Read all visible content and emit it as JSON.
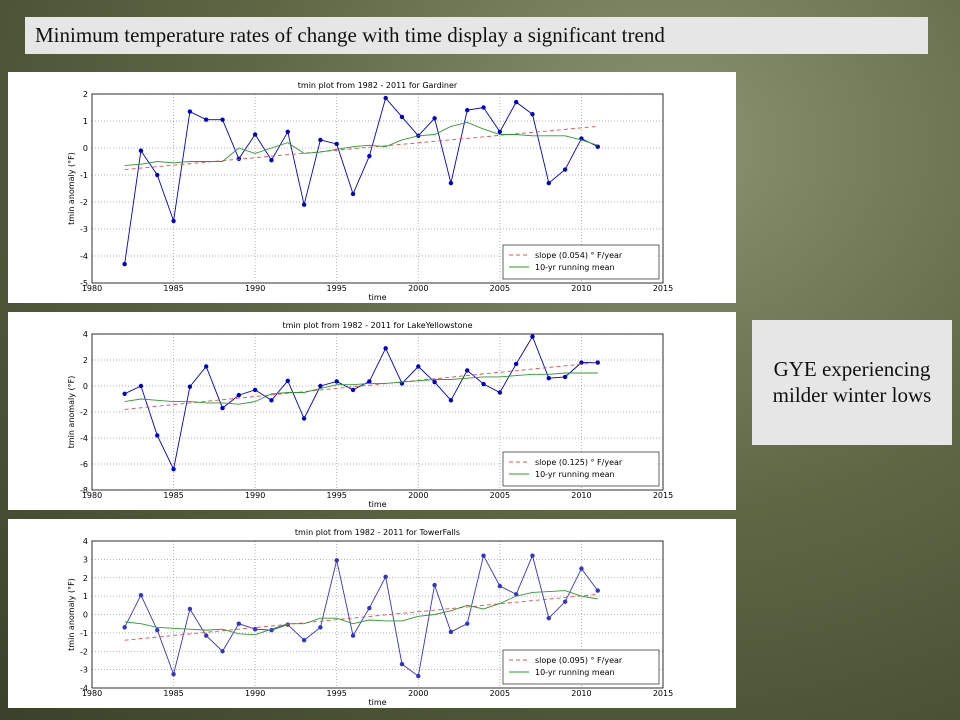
{
  "slide": {
    "title": "Minimum temperature rates of change with time display a significant trend",
    "note": "GYE experiencing milder winter lows"
  },
  "chart_data": [
    {
      "type": "line",
      "title": "tmin plot from 1982 - 2011 for Gardiner",
      "xlabel": "time",
      "ylabel": "tmin anomaly (°F)",
      "x": [
        1982,
        1983,
        1984,
        1985,
        1986,
        1987,
        1988,
        1989,
        1990,
        1991,
        1992,
        1993,
        1994,
        1995,
        1996,
        1997,
        1998,
        1999,
        2000,
        2001,
        2002,
        2003,
        2004,
        2005,
        2006,
        2007,
        2008,
        2009,
        2010,
        2011
      ],
      "xlim": [
        1980,
        2015
      ],
      "xticks": [
        1980,
        1985,
        1990,
        1995,
        2000,
        2005,
        2010,
        2015
      ],
      "ylim": [
        -5,
        2
      ],
      "yticks": [
        -5,
        -4,
        -3,
        -2,
        -1,
        0,
        1,
        2
      ],
      "grid": true,
      "legend": "lower right",
      "series": [
        {
          "color": "#0000cc",
          "marker": "o",
          "values": [
            -4.3,
            -0.1,
            -1.0,
            -2.7,
            1.35,
            1.05,
            1.05,
            -0.4,
            0.5,
            -0.45,
            0.6,
            -2.1,
            0.3,
            0.15,
            -1.7,
            -0.3,
            1.85,
            1.15,
            0.45,
            1.1,
            -1.3,
            1.4,
            1.5,
            0.6,
            1.7,
            1.25,
            -1.3,
            -0.8,
            0.35,
            0.05
          ]
        },
        {
          "name": "slope (0.054) ° F/year",
          "color": "#e05050",
          "dashed": true,
          "x": [
            1982,
            2011
          ],
          "values": [
            -0.8,
            0.8
          ]
        },
        {
          "name": "10-yr running mean",
          "color": "#2e9a2e",
          "values": [
            -0.65,
            -0.6,
            -0.5,
            -0.55,
            -0.5,
            -0.5,
            -0.5,
            0.0,
            -0.2,
            0.0,
            0.2,
            -0.2,
            -0.15,
            -0.05,
            0.05,
            0.1,
            0.05,
            0.3,
            0.45,
            0.5,
            0.8,
            0.95,
            0.7,
            0.5,
            0.5,
            0.45,
            0.45,
            0.45,
            0.3,
            0.1
          ]
        }
      ]
    },
    {
      "type": "line",
      "title": "tmin plot from 1982 - 2011 for LakeYellowstone",
      "xlabel": "time",
      "ylabel": "tmin anomaly (°F)",
      "x": [
        1982,
        1983,
        1984,
        1985,
        1986,
        1987,
        1988,
        1989,
        1990,
        1991,
        1992,
        1993,
        1994,
        1995,
        1996,
        1997,
        1998,
        1999,
        2000,
        2001,
        2002,
        2003,
        2004,
        2005,
        2006,
        2007,
        2008,
        2009,
        2010,
        2011
      ],
      "xlim": [
        1980,
        2015
      ],
      "xticks": [
        1980,
        1985,
        1990,
        1995,
        2000,
        2005,
        2010,
        2015
      ],
      "ylim": [
        -8,
        4
      ],
      "yticks": [
        -8,
        -6,
        -4,
        -2,
        0,
        2,
        4
      ],
      "grid": true,
      "legend": "lower right",
      "series": [
        {
          "color": "#0000cc",
          "marker": "o",
          "values": [
            -0.6,
            0,
            -3.8,
            -6.4,
            -0.05,
            1.5,
            -1.7,
            -0.7,
            -0.3,
            -1.1,
            0.4,
            -2.5,
            0.0,
            0.35,
            -0.3,
            0.35,
            2.9,
            0.2,
            1.5,
            0.3,
            -1.1,
            1.2,
            0.15,
            -0.5,
            1.7,
            3.8,
            0.6,
            0.7,
            1.8,
            1.8
          ]
        },
        {
          "name": "slope (0.125) ° F/year",
          "color": "#e05050",
          "dashed": true,
          "x": [
            1982,
            2011
          ],
          "values": [
            -1.8,
            1.8
          ]
        },
        {
          "name": "10-yr running mean",
          "color": "#2e9a2e",
          "values": [
            -1.2,
            -1.0,
            -1.1,
            -1.2,
            -1.2,
            -1.3,
            -1.3,
            -1.4,
            -1.2,
            -0.6,
            -0.5,
            -0.5,
            -0.2,
            0.1,
            0.1,
            0.2,
            0.2,
            0.3,
            0.4,
            0.5,
            0.5,
            0.6,
            0.7,
            0.7,
            0.8,
            0.9,
            0.9,
            1.0,
            1.0,
            1.0
          ]
        }
      ]
    },
    {
      "type": "line",
      "title": "tmin plot from 1982 - 2011 for TowerFalls",
      "xlabel": "time",
      "ylabel": "tmin anomaly (°F)",
      "x": [
        1982,
        1983,
        1984,
        1985,
        1986,
        1987,
        1988,
        1989,
        1990,
        1991,
        1992,
        1993,
        1994,
        1995,
        1996,
        1997,
        1998,
        1999,
        2000,
        2001,
        2002,
        2003,
        2004,
        2005,
        2006,
        2007,
        2008,
        2009,
        2010,
        2011
      ],
      "xlim": [
        1980,
        2015
      ],
      "xticks": [
        1980,
        1985,
        1990,
        1995,
        2000,
        2005,
        2010,
        2015
      ],
      "ylim": [
        -4,
        4
      ],
      "yticks": [
        -4,
        -3,
        -2,
        -1,
        0,
        1,
        2,
        3,
        4
      ],
      "grid": true,
      "legend": "lower right",
      "series": [
        {
          "color": "#3333cc",
          "marker": "o",
          "values": [
            -0.7,
            1.05,
            -0.85,
            -3.25,
            0.3,
            -1.15,
            -2.0,
            -0.5,
            -0.8,
            -0.85,
            -0.55,
            -1.4,
            -0.7,
            2.95,
            -1.15,
            0.35,
            2.05,
            -2.7,
            -3.35,
            1.6,
            -0.95,
            -0.5,
            3.2,
            1.55,
            1.1,
            3.2,
            -0.2,
            0.7,
            2.5,
            1.3
          ]
        },
        {
          "name": "slope (0.095) ° F/year",
          "color": "#e05050",
          "dashed": true,
          "x": [
            1982,
            2011
          ],
          "values": [
            -1.4,
            1.1
          ]
        },
        {
          "name": "10-yr running mean",
          "color": "#2e9a2e",
          "values": [
            -0.4,
            -0.5,
            -0.7,
            -0.75,
            -0.8,
            -0.85,
            -0.8,
            -1.05,
            -1.1,
            -0.8,
            -0.5,
            -0.5,
            -0.2,
            -0.2,
            -0.5,
            -0.3,
            -0.35,
            -0.35,
            -0.1,
            0.0,
            0.2,
            0.5,
            0.3,
            0.6,
            1.0,
            1.2,
            1.25,
            1.3,
            1.0,
            0.85
          ]
        }
      ]
    }
  ]
}
